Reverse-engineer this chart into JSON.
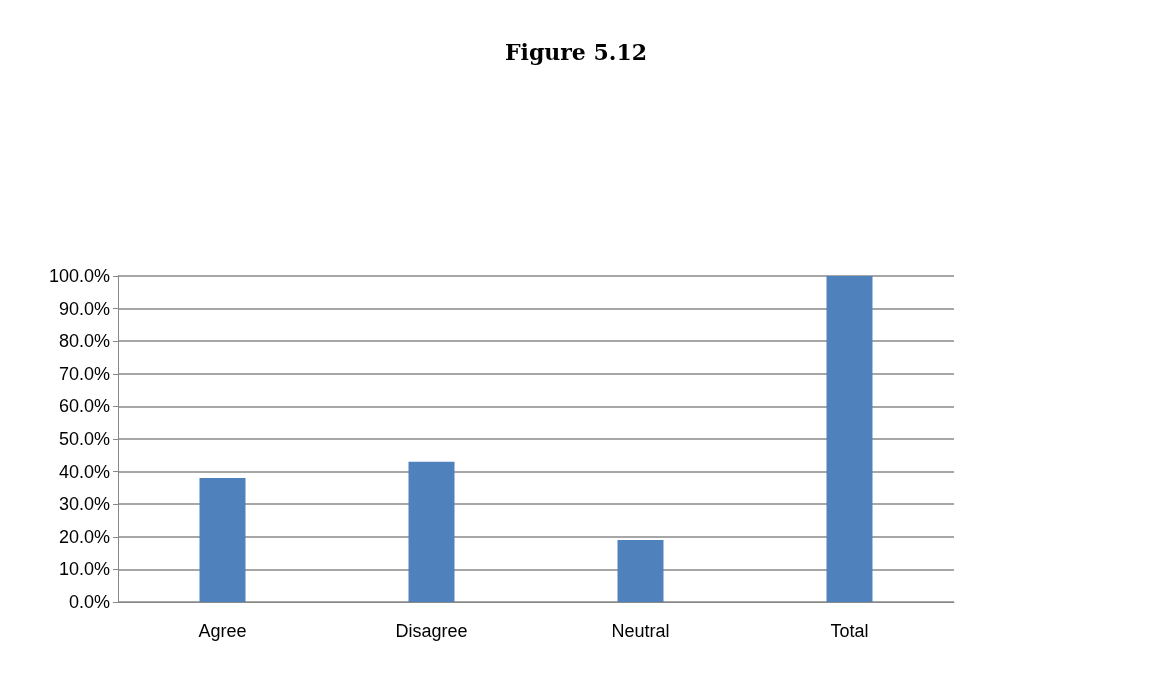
{
  "chart_data": {
    "type": "bar",
    "title": "Figure 5.12",
    "categories": [
      "Agree",
      "Disagree",
      "Neutral",
      "Total"
    ],
    "values": [
      38,
      43,
      19,
      100
    ],
    "color": "#4f81bd",
    "ylim": [
      0,
      100
    ],
    "yticks": [
      {
        "value": 0,
        "label": "0.0%"
      },
      {
        "value": 10,
        "label": "10.0%"
      },
      {
        "value": 20,
        "label": "20.0%"
      },
      {
        "value": 30,
        "label": "30.0%"
      },
      {
        "value": 40,
        "label": "40.0%"
      },
      {
        "value": 50,
        "label": "50.0%"
      },
      {
        "value": 60,
        "label": "60.0%"
      },
      {
        "value": 70,
        "label": "70.0%"
      },
      {
        "value": 80,
        "label": "80.0%"
      },
      {
        "value": 90,
        "label": "90.0%"
      },
      {
        "value": 100,
        "label": "100.0%"
      }
    ],
    "grid": true
  }
}
